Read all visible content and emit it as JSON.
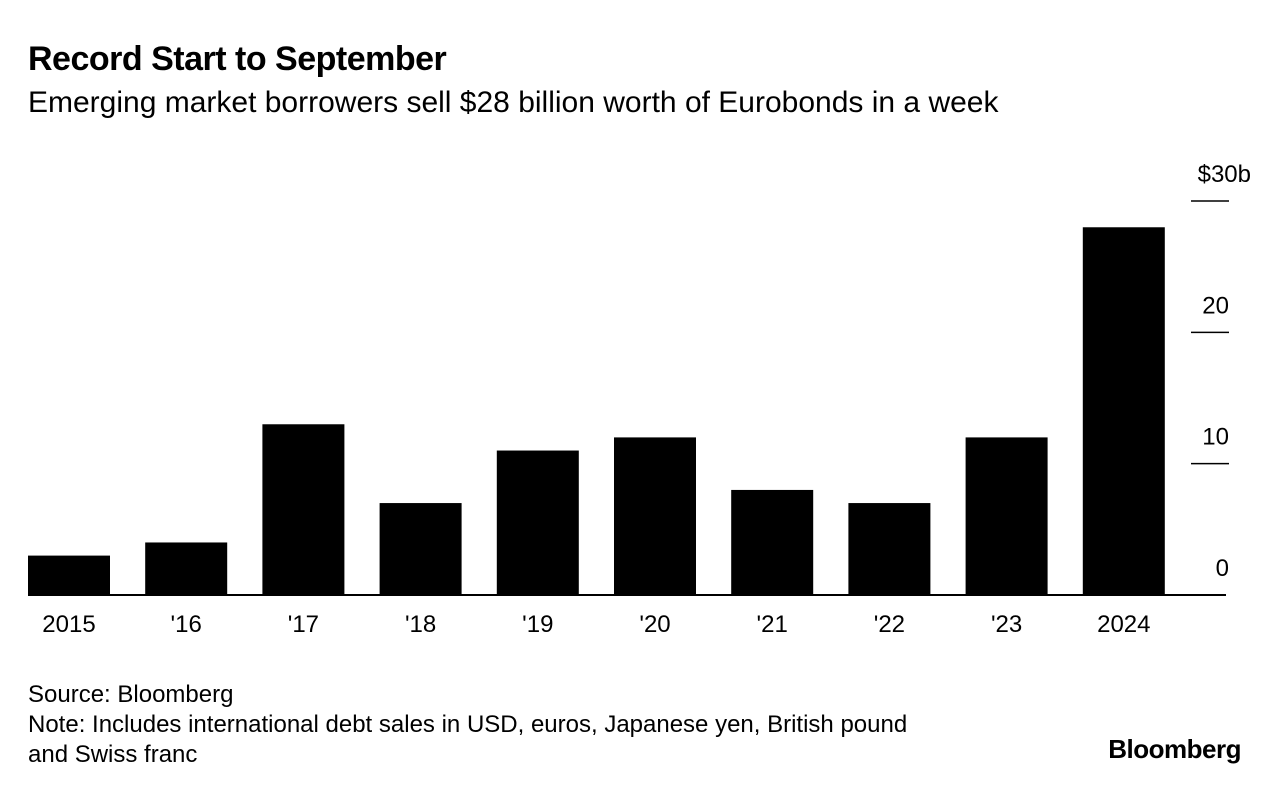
{
  "chart_data": {
    "type": "bar",
    "title": "Record Start to September",
    "subtitle": "Emerging market borrowers sell $28 billion worth of Eurobonds in a week",
    "categories": [
      "2015",
      "'16",
      "'17",
      "'18",
      "'19",
      "'20",
      "'21",
      "'22",
      "'23",
      "2024"
    ],
    "values": [
      3,
      4,
      13,
      7,
      11,
      12,
      8,
      7,
      12,
      28
    ],
    "ylim": [
      0,
      30
    ],
    "yticks": [
      0,
      10,
      20,
      30
    ],
    "ytick_labels": [
      "0",
      "10",
      "20",
      "$30b"
    ],
    "xlabel": "",
    "ylabel": "",
    "bar_color": "#000000",
    "axis_side": "right"
  },
  "footer": {
    "source": "Source: Bloomberg",
    "note_line1": "Note: Includes international debt sales in USD, euros, Japanese yen, British pound",
    "note_line2": "and Swiss franc"
  },
  "brand": "Bloomberg"
}
